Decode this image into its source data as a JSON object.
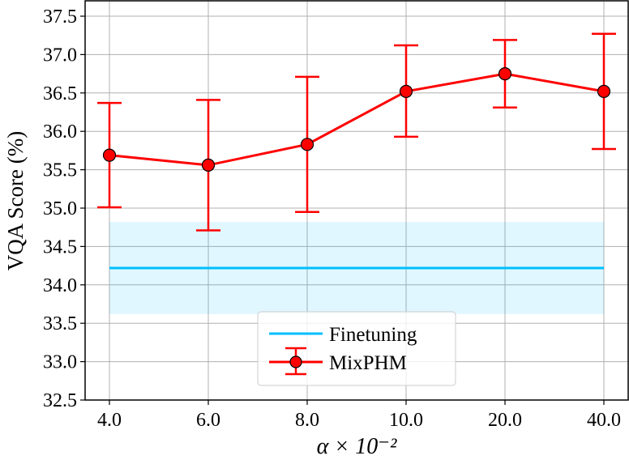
{
  "chart_data": {
    "type": "line",
    "title": "",
    "xlabel": "α × 10⁻²",
    "ylabel": "VQA Score (%)",
    "categories": [
      "4.0",
      "6.0",
      "8.0",
      "10.0",
      "20.0",
      "40.0"
    ],
    "ylim": [
      32.5,
      37.6
    ],
    "yticks": [
      "32.5",
      "33.0",
      "33.5",
      "34.0",
      "34.5",
      "35.0",
      "35.5",
      "36.0",
      "36.5",
      "37.0",
      "37.5"
    ],
    "grid": true,
    "legend_placement": "bottom-center",
    "series": [
      {
        "name": "MixPHM",
        "color": "#ff0000",
        "values": [
          35.69,
          35.56,
          35.83,
          36.52,
          36.75,
          36.52
        ],
        "err_low": [
          35.01,
          34.71,
          34.95,
          35.93,
          36.31,
          35.77
        ],
        "err_high": [
          36.37,
          36.41,
          36.71,
          37.12,
          37.19,
          37.27
        ]
      },
      {
        "name": "Finetuning",
        "color": "#00bfff",
        "value": 34.22,
        "band": [
          33.62,
          34.82
        ]
      }
    ]
  }
}
